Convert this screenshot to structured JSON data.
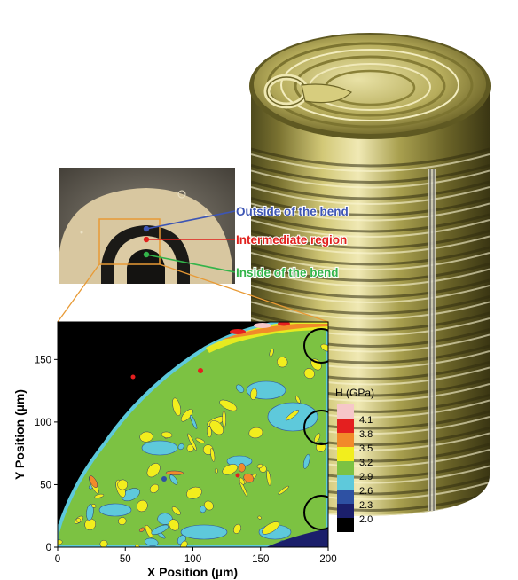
{
  "callouts": {
    "outside": "Outside of the bend",
    "intermediate": "Intermediate region",
    "inside": "Inside of the bend"
  },
  "colors": {
    "outside": "#3d55b4",
    "intermediate": "#e0201c",
    "inside": "#33b44a"
  },
  "icons": {
    "can": "tin-can-with-pull-ring",
    "micrograph": "bent-sheet-cross-section-micrograph"
  },
  "chart_data": {
    "type": "heatmap",
    "title": "",
    "xlabel": "X Position (µm)",
    "ylabel": "Y Position (µm)",
    "xlim": [
      0,
      200
    ],
    "ylim": [
      0,
      180
    ],
    "x_ticks": [
      "0",
      "50",
      "100",
      "150",
      "200"
    ],
    "y_ticks": [
      "0",
      "50",
      "100",
      "150"
    ],
    "legend": {
      "title": "H (GPa)",
      "levels": [
        {
          "label": "4.1",
          "color": "#f6c7c9"
        },
        {
          "label": "3.8",
          "color": "#e41f1f"
        },
        {
          "label": "3.5",
          "color": "#f28a2a"
        },
        {
          "label": "3.2",
          "color": "#f2ee1d"
        },
        {
          "label": "2.9",
          "color": "#7cc242"
        },
        {
          "label": "2.6",
          "color": "#5ec9db"
        },
        {
          "label": "2.3",
          "color": "#2e51a3"
        },
        {
          "label": "2.0",
          "color": "#1b1f6b"
        },
        {
          "label": "",
          "color": "#000000"
        }
      ]
    }
  }
}
